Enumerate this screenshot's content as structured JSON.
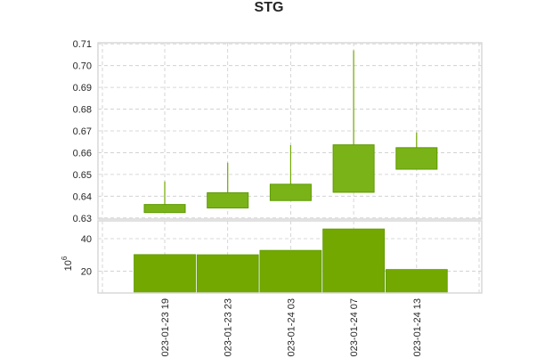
{
  "chart_data": {
    "type": "candlestick",
    "title": "STG",
    "x": [
      "023-01-23 19",
      "023-01-23 23",
      "023-01-24 03",
      "023-01-24 07",
      "023-01-24 13"
    ],
    "price": {
      "ylim": [
        0.6295,
        0.7105
      ],
      "yticks": [
        "0.63",
        "0.64",
        "0.65",
        "0.66",
        "0.67",
        "0.68",
        "0.69",
        "0.70",
        "0.71"
      ],
      "candles": [
        {
          "open": 0.6325,
          "close": 0.6362,
          "high": 0.6468,
          "low": 0.6325
        },
        {
          "open": 0.6346,
          "close": 0.6416,
          "high": 0.6554,
          "low": 0.6346
        },
        {
          "open": 0.638,
          "close": 0.6455,
          "high": 0.6635,
          "low": 0.638
        },
        {
          "open": 0.6418,
          "close": 0.6636,
          "high": 0.707,
          "low": 0.6418
        },
        {
          "open": 0.6524,
          "close": 0.6623,
          "high": 0.6693,
          "low": 0.6524
        }
      ]
    },
    "volume": {
      "ylabel_multiplier": "10^6",
      "yticks": [
        "20",
        "40"
      ],
      "ylim": [
        6.5,
        51
      ],
      "values": [
        30.2,
        30.1,
        32.8,
        46.0,
        21.0
      ]
    },
    "colors": {
      "up": "#72a800",
      "up_edge": "#5e9a00",
      "grid": "#cccccc"
    },
    "grid": true
  }
}
